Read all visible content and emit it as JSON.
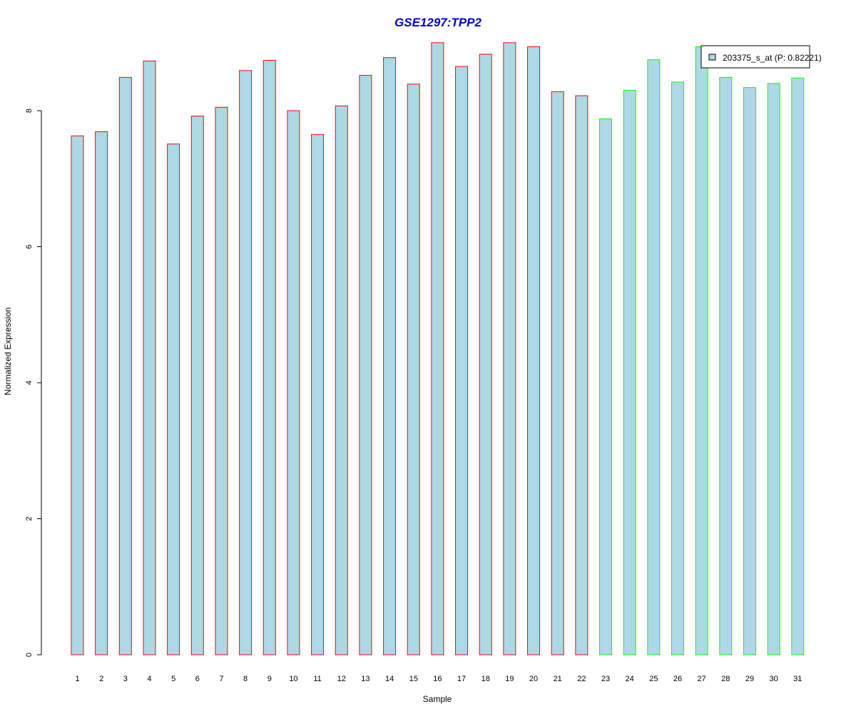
{
  "chart_data": {
    "type": "bar",
    "title": "GSE1297:TPP2",
    "xlabel": "Sample",
    "ylabel": "Normalized Expression",
    "ylim": [
      0,
      9
    ],
    "y_ticks": [
      0,
      2,
      4,
      6,
      8
    ],
    "categories": [
      "1",
      "2",
      "3",
      "4",
      "5",
      "6",
      "7",
      "8",
      "9",
      "10",
      "11",
      "12",
      "13",
      "14",
      "15",
      "16",
      "17",
      "18",
      "19",
      "20",
      "21",
      "22",
      "23",
      "24",
      "25",
      "26",
      "27",
      "28",
      "29",
      "30",
      "31"
    ],
    "values": [
      7.63,
      7.69,
      8.49,
      8.73,
      7.51,
      7.92,
      8.05,
      8.59,
      8.74,
      8.0,
      7.65,
      8.07,
      8.52,
      8.78,
      8.39,
      9.0,
      8.65,
      8.83,
      9.0,
      8.94,
      8.28,
      8.22,
      7.88,
      8.3,
      8.75,
      8.42,
      8.94,
      8.49,
      8.34,
      8.4,
      8.48
    ],
    "series": [
      {
        "name": "203375_s_at (P: 0.82221)",
        "fill": "#add8e6"
      }
    ],
    "groups": [
      {
        "from": 1,
        "to": 22,
        "border_color": "#ff0000"
      },
      {
        "from": 23,
        "to": 31,
        "border_color": "#00ff00"
      }
    ],
    "title_color": "#0000cc",
    "legend_position": "top-right",
    "grid": false
  }
}
